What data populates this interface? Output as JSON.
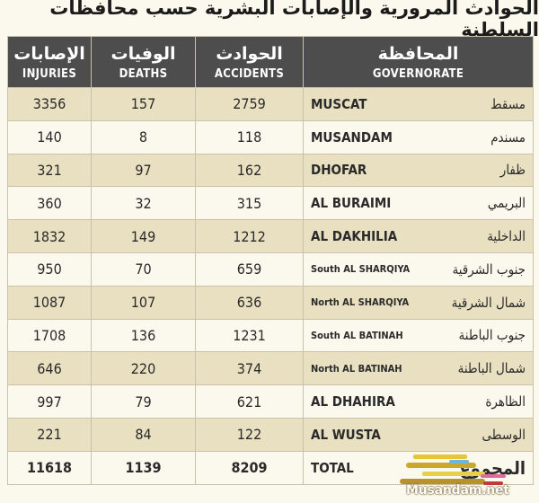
{
  "title": "الحوادث المرورية والإصابات البشرية حسب محافظات السلطنة",
  "headers": {
    "injuries": {
      "ar": "الإصابات",
      "en": "INJURIES"
    },
    "deaths": {
      "ar": "الوفيات",
      "en": "DEATHS"
    },
    "accidents": {
      "ar": "الحوادث",
      "en": "ACCIDENTS"
    },
    "governorate": {
      "ar": "المحافظة",
      "en": "GOVERNORATE"
    }
  },
  "rows": [
    {
      "injuries": "3356",
      "deaths": "157",
      "accidents": "2759",
      "gov_en": "MUSCAT",
      "gov_ar": "مسقط"
    },
    {
      "injuries": "140",
      "deaths": "8",
      "accidents": "118",
      "gov_en": "MUSANDAM",
      "gov_ar": "مسندم"
    },
    {
      "injuries": "321",
      "deaths": "97",
      "accidents": "162",
      "gov_en": "DHOFAR",
      "gov_ar": "ظفار"
    },
    {
      "injuries": "360",
      "deaths": "32",
      "accidents": "315",
      "gov_en": "AL BURAIMI",
      "gov_ar": "البريمي"
    },
    {
      "injuries": "1832",
      "deaths": "149",
      "accidents": "1212",
      "gov_en": "AL DAKHILIA",
      "gov_ar": "الداخلية"
    },
    {
      "injuries": "950",
      "deaths": "70",
      "accidents": "659",
      "gov_en": "South AL SHARQIYA",
      "gov_ar": "جنوب الشرقية"
    },
    {
      "injuries": "1087",
      "deaths": "107",
      "accidents": "636",
      "gov_en": "North AL SHARQIYA",
      "gov_ar": "شمال الشرقية"
    },
    {
      "injuries": "1708",
      "deaths": "136",
      "accidents": "1231",
      "gov_en": "South AL BATINAH",
      "gov_ar": "جنوب الباطنة"
    },
    {
      "injuries": "646",
      "deaths": "220",
      "accidents": "374",
      "gov_en": "North AL BATINAH",
      "gov_ar": "شمال الباطنة"
    },
    {
      "injuries": "997",
      "deaths": "79",
      "accidents": "621",
      "gov_en": "AL DHAHIRA",
      "gov_ar": "الظاهرة"
    },
    {
      "injuries": "221",
      "deaths": "84",
      "accidents": "122",
      "gov_en": "AL WUSTA",
      "gov_ar": "الوسطى"
    }
  ],
  "total": {
    "injuries": "11618",
    "deaths": "1139",
    "accidents": "8209",
    "gov_en": "TOTAL",
    "gov_ar": "المجموع"
  },
  "watermark": "Musandam.net",
  "colors": {
    "header_bg": "#4d4d4d",
    "row_shade": "#e8e0c1",
    "row_light": "#fbf8ee"
  }
}
